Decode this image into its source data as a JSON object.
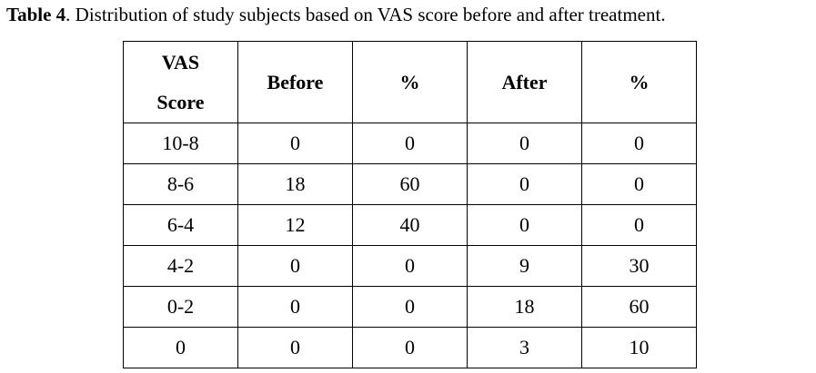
{
  "caption": {
    "label": "Table 4",
    "text": ". Distribution of study subjects based on VAS score before and after treatment."
  },
  "table": {
    "headers": {
      "vas_line1": "VAS",
      "vas_line2": "Score",
      "before": "Before",
      "before_pct": "%",
      "after": "After",
      "after_pct": "%"
    },
    "rows": [
      {
        "score": "10-8",
        "before": "0",
        "before_pct": "0",
        "after": "0",
        "after_pct": "0"
      },
      {
        "score": "8-6",
        "before": "18",
        "before_pct": "60",
        "after": "0",
        "after_pct": "0"
      },
      {
        "score": "6-4",
        "before": "12",
        "before_pct": "40",
        "after": "0",
        "after_pct": "0"
      },
      {
        "score": "4-2",
        "before": "0",
        "before_pct": "0",
        "after": "9",
        "after_pct": "30"
      },
      {
        "score": "0-2",
        "before": "0",
        "before_pct": "0",
        "after": "18",
        "after_pct": "60"
      },
      {
        "score": "0",
        "before": "0",
        "before_pct": "0",
        "after": "3",
        "after_pct": "10"
      }
    ]
  }
}
